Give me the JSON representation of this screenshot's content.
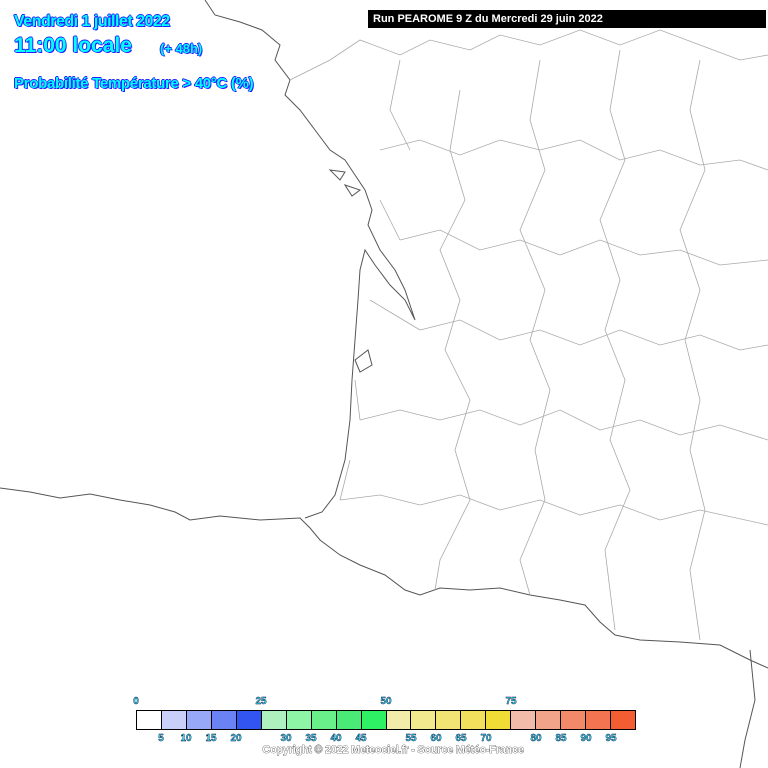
{
  "header": {
    "date": "Vendredi 1 juillet 2022",
    "time": "11:00 locale",
    "lead": "(+ 48h)",
    "parameter": "Probabilité Température > 40°C (%)",
    "run": "Run PEAROME 9 Z du Mercredi 29 juin 2022"
  },
  "legend": {
    "colors": [
      "#ffffff",
      "#c8d0fa",
      "#98a8f8",
      "#6a82f4",
      "#3254f0",
      "#aef0be",
      "#8ef4a6",
      "#6af08a",
      "#4aea76",
      "#2ef264",
      "#f2ecaa",
      "#f2e88e",
      "#f2e474",
      "#f2e05c",
      "#f0dc34",
      "#f2bcaa",
      "#f2a48a",
      "#f28a6a",
      "#f27450",
      "#f25e32"
    ],
    "top_labels": [
      "0",
      "25",
      "50",
      "75"
    ],
    "bottom_labels": [
      "5",
      "10",
      "15",
      "20",
      "30",
      "35",
      "40",
      "45",
      "55",
      "60",
      "65",
      "70",
      "80",
      "85",
      "90",
      "95"
    ]
  },
  "copyright": "Copyright © 2022 Meteociel.fr - Source Météo-France"
}
